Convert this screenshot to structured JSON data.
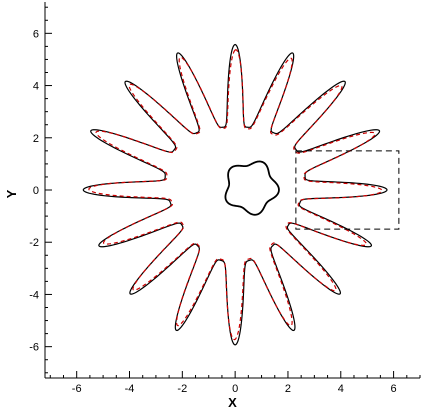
{
  "chart_data": {
    "type": "line",
    "xlabel": "X",
    "ylabel": "Y",
    "xlim": [
      -7.2,
      7.0
    ],
    "ylim": [
      -7.2,
      7.2
    ],
    "x_ticks": [
      -6,
      -4,
      -2,
      0,
      2,
      4,
      6
    ],
    "y_ticks": [
      -6,
      -4,
      -2,
      0,
      2,
      4,
      6
    ],
    "x_tick_labels": [
      "-6",
      "-4",
      "-2",
      "0",
      "2",
      "4",
      "6"
    ],
    "y_tick_labels": [
      "-6",
      "-4",
      "-2",
      "0",
      "2",
      "4",
      "6"
    ],
    "grid": false,
    "legend": "none",
    "series": [
      {
        "style": "solid",
        "color": "#000000",
        "shape": "fingered ring",
        "center": [
          0.0,
          0.0
        ],
        "inner_radius": 2.6,
        "outer_radius": 5.75,
        "finger_count": 16,
        "first_finger_angle_deg": 90
      },
      {
        "style": "dashed",
        "color": "#cc0000",
        "shape": "fingered ring",
        "center": [
          0.0,
          0.0
        ],
        "inner_radius": 2.55,
        "outer_radius": 5.55,
        "finger_count": 16,
        "first_finger_angle_deg": 90
      },
      {
        "style": "solid",
        "color": "#000000",
        "shape": "inner blob",
        "center": [
          0.6,
          0.1
        ],
        "radius": 0.95,
        "lobes": 5
      }
    ],
    "annotations": [
      {
        "kind": "dashed rectangle",
        "x_range": [
          2.3,
          6.2
        ],
        "y_range": [
          -1.5,
          1.5
        ]
      }
    ]
  }
}
